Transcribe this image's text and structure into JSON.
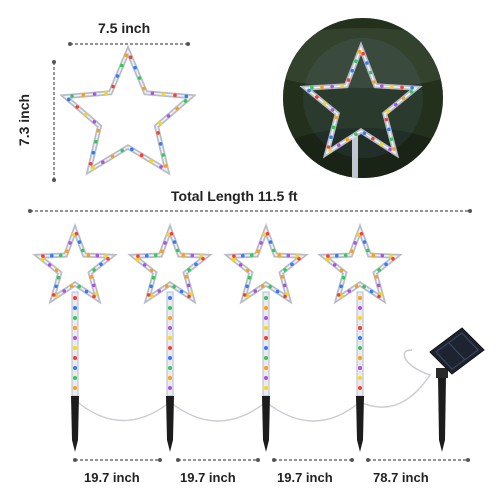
{
  "dimensions": {
    "width_label": "7.5 inch",
    "height_label": "7.3 inch",
    "total_length_label": "Total Length 11.5 ft",
    "gaps": [
      {
        "label": "19.7 inch"
      },
      {
        "label": "19.7 inch"
      },
      {
        "label": "19.7 inch"
      },
      {
        "label": "78.7 inch"
      }
    ]
  },
  "colors": {
    "dimension_line": "#555555",
    "star_outline": "#b8bcc8",
    "stake": "#1c1c1c",
    "wire": "#c9ccd3",
    "solar_panel": "#1d2330",
    "led_colors": [
      "#ff3b30",
      "#2f7bff",
      "#34c759",
      "#ff9f0a",
      "#af52de",
      "#ffd60a"
    ]
  },
  "stars": [
    {
      "name": "star-light-1"
    },
    {
      "name": "star-light-2"
    },
    {
      "name": "star-light-3"
    },
    {
      "name": "star-light-4"
    }
  ]
}
